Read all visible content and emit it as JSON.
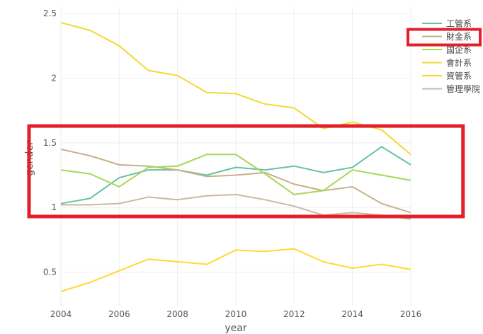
{
  "chart_data": {
    "type": "line",
    "title": "",
    "xlabel": "year",
    "ylabel": "gender",
    "x": [
      2004,
      2005,
      2006,
      2007,
      2008,
      2009,
      2010,
      2011,
      2012,
      2013,
      2014,
      2015,
      2016
    ],
    "xlim": [
      2004,
      2016
    ],
    "ylim": [
      0.24,
      2.55
    ],
    "xticks": [
      "2004",
      "2006",
      "2008",
      "2010",
      "2012",
      "2014",
      "2016"
    ],
    "xtick_values": [
      2004,
      2006,
      2008,
      2010,
      2012,
      2014,
      2016
    ],
    "yticks": [
      "0.5",
      "1",
      "1.5",
      "2",
      "2.5"
    ],
    "ytick_values": [
      0.5,
      1,
      1.5,
      2,
      2.5
    ],
    "grid": true,
    "legend_position": "top-right",
    "highlight_legend_entry": "財金系",
    "highlight_region": {
      "x_range": [
        2004,
        2017.5
      ],
      "y_range": [
        0.93,
        1.63
      ]
    },
    "series": [
      {
        "name": "工管系",
        "color": "#66c2a5",
        "values": [
          1.03,
          1.07,
          1.23,
          1.29,
          1.29,
          1.25,
          1.31,
          1.29,
          1.32,
          1.27,
          1.31,
          1.47,
          1.33
        ]
      },
      {
        "name": "財金系",
        "color": "#c8b08a",
        "values": [
          1.45,
          1.4,
          1.33,
          1.32,
          1.29,
          1.24,
          1.25,
          1.27,
          1.18,
          1.13,
          1.16,
          1.03,
          0.96
        ]
      },
      {
        "name": "國企系",
        "color": "#a6d854",
        "values": [
          1.29,
          1.26,
          1.16,
          1.31,
          1.32,
          1.41,
          1.41,
          1.26,
          1.1,
          1.13,
          1.29,
          1.25,
          1.21
        ]
      },
      {
        "name": "會計系",
        "color": "#f2d934",
        "values": [
          2.43,
          2.37,
          2.25,
          2.06,
          2.02,
          1.89,
          1.88,
          1.8,
          1.77,
          1.61,
          1.66,
          1.6,
          1.41
        ]
      },
      {
        "name": "資管系",
        "color": "#ffd92f",
        "values": [
          0.35,
          0.42,
          0.51,
          0.6,
          0.58,
          0.56,
          0.67,
          0.66,
          0.68,
          0.58,
          0.53,
          0.56,
          0.52
        ]
      },
      {
        "name": "管理學院",
        "color": "#c9b8a6",
        "values": [
          1.02,
          1.02,
          1.03,
          1.08,
          1.06,
          1.09,
          1.1,
          1.06,
          1.01,
          0.94,
          0.96,
          0.94,
          0.91
        ]
      }
    ]
  }
}
